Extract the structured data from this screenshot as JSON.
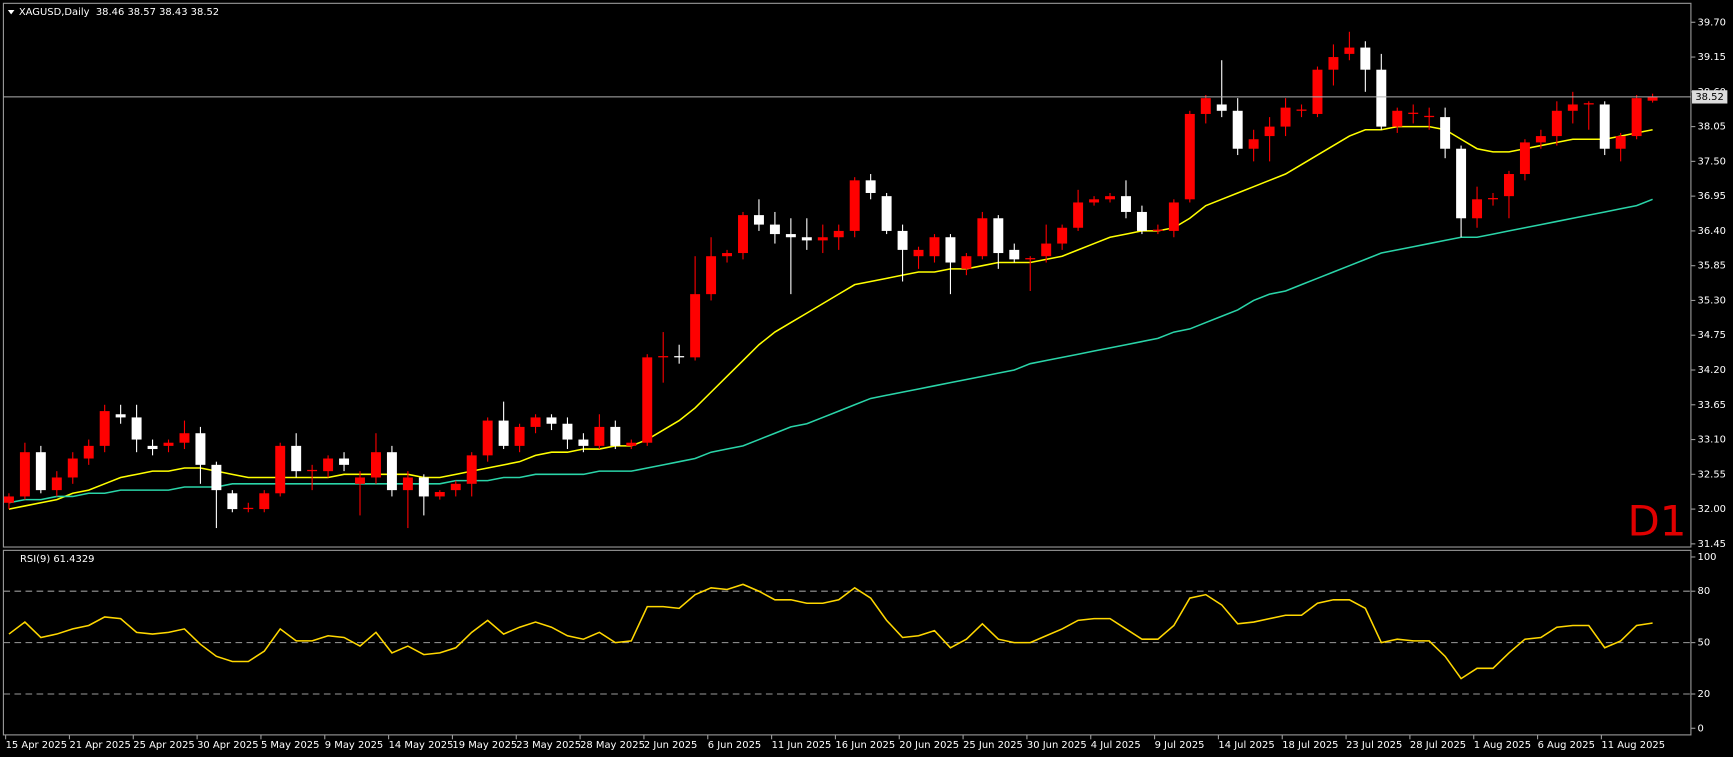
{
  "chart_data": [
    {
      "type": "candlestick",
      "title": "XAGUSD,Daily  38.46 38.57 38.43 38.52",
      "timeframe_label": "D1",
      "categories": [
        "15 Apr 2025",
        null,
        null,
        null,
        "21 Apr 2025",
        null,
        null,
        null,
        "25 Apr 2025",
        null,
        null,
        null,
        "30 Apr 2025",
        null,
        null,
        null,
        "5 May 2025",
        null,
        null,
        null,
        "9 May 2025",
        null,
        null,
        null,
        "14 May 2025",
        null,
        null,
        null,
        "19 May 2025",
        null,
        null,
        null,
        "23 May 2025",
        null,
        null,
        null,
        "28 May 2025",
        null,
        null,
        null,
        "2 Jun 2025",
        null,
        null,
        null,
        "6 Jun 2025",
        null,
        null,
        null,
        "11 Jun 2025",
        null,
        null,
        null,
        "16 Jun 2025",
        null,
        null,
        null,
        "20 Jun 2025",
        null,
        null,
        null,
        "25 Jun 2025",
        null,
        null,
        null,
        "30 Jun 2025",
        null,
        null,
        null,
        "4 Jul 2025",
        null,
        null,
        null,
        "9 Jul 2025",
        null,
        null,
        null,
        "14 Jul 2025",
        null,
        null,
        null,
        "18 Jul 2025",
        null,
        null,
        null,
        "23 Jul 2025",
        null,
        null,
        null,
        "28 Jul 2025",
        null,
        null,
        null,
        "1 Aug 2025",
        null,
        null,
        null,
        "6 Aug 2025",
        null,
        null,
        null,
        "11 Aug 2025",
        null,
        null,
        null
      ],
      "open": [
        32.1,
        32.2,
        32.9,
        32.3,
        32.5,
        32.8,
        33.0,
        33.5,
        33.45,
        33.0,
        33.0,
        33.05,
        33.2,
        32.7,
        32.25,
        32.0,
        32.0,
        32.25,
        33.0,
        32.6,
        32.6,
        32.8,
        32.4,
        32.5,
        32.9,
        32.3,
        32.5,
        32.2,
        32.3,
        32.4,
        32.85,
        33.4,
        33.0,
        33.3,
        33.45,
        33.35,
        33.1,
        33.0,
        33.3,
        33.0,
        33.05,
        34.4,
        34.42,
        34.4,
        35.4,
        36.0,
        36.05,
        36.65,
        36.5,
        36.35,
        36.3,
        36.25,
        36.3,
        36.4,
        37.2,
        36.95,
        36.4,
        36.0,
        36.0,
        36.3,
        35.8,
        36.0,
        36.6,
        36.1,
        35.95,
        36.0,
        36.2,
        36.45,
        36.85,
        36.9,
        36.95,
        36.7,
        36.4,
        36.4,
        36.9,
        38.25,
        38.4,
        38.3,
        37.7,
        37.9,
        38.05,
        38.3,
        38.25,
        38.95,
        39.2,
        39.3,
        38.95,
        38.05,
        38.25,
        38.2,
        38.2,
        37.7,
        36.6,
        36.9,
        36.95,
        37.3,
        37.8,
        37.9,
        38.3,
        38.4,
        38.4,
        37.7,
        37.9,
        38.46
      ],
      "high": [
        32.25,
        33.05,
        33.0,
        32.6,
        32.9,
        33.1,
        33.65,
        33.65,
        33.65,
        33.1,
        33.1,
        33.4,
        33.3,
        32.75,
        32.3,
        32.1,
        32.3,
        33.05,
        33.2,
        32.7,
        32.85,
        32.9,
        32.6,
        33.2,
        33.0,
        32.6,
        32.55,
        32.3,
        32.45,
        32.9,
        33.45,
        33.7,
        33.35,
        33.5,
        33.5,
        33.45,
        33.2,
        33.5,
        33.4,
        33.1,
        34.45,
        34.8,
        34.6,
        36.0,
        36.3,
        36.1,
        36.7,
        36.9,
        36.7,
        36.6,
        36.6,
        36.5,
        36.5,
        37.25,
        37.3,
        37.0,
        36.5,
        36.15,
        36.35,
        36.35,
        36.05,
        36.7,
        36.65,
        36.2,
        36.0,
        36.5,
        36.5,
        37.05,
        36.95,
        37.0,
        37.2,
        36.8,
        36.5,
        36.9,
        38.3,
        38.55,
        39.1,
        38.5,
        38.0,
        38.2,
        38.5,
        38.4,
        39.0,
        39.35,
        39.55,
        39.4,
        39.2,
        38.35,
        38.4,
        38.35,
        38.35,
        37.75,
        37.1,
        37.0,
        37.35,
        37.85,
        38.0,
        38.45,
        38.6,
        38.45,
        38.45,
        37.95,
        38.55,
        38.57
      ],
      "low": [
        32.0,
        32.15,
        32.25,
        32.2,
        32.4,
        32.7,
        32.9,
        33.35,
        32.9,
        32.85,
        32.9,
        32.95,
        32.4,
        31.7,
        31.95,
        31.95,
        31.95,
        32.2,
        32.5,
        32.3,
        32.5,
        32.6,
        31.9,
        32.4,
        32.2,
        31.7,
        31.9,
        32.15,
        32.2,
        32.2,
        32.75,
        32.95,
        32.9,
        33.2,
        33.25,
        32.95,
        32.9,
        32.95,
        32.95,
        32.95,
        33.0,
        34.0,
        34.3,
        34.35,
        35.3,
        35.9,
        35.95,
        36.4,
        36.2,
        35.4,
        36.1,
        36.05,
        36.1,
        36.3,
        36.9,
        36.35,
        35.6,
        35.8,
        35.9,
        35.4,
        35.7,
        35.95,
        35.8,
        35.9,
        35.45,
        35.9,
        36.1,
        36.4,
        36.8,
        36.85,
        36.6,
        36.35,
        36.35,
        36.3,
        36.85,
        38.1,
        38.2,
        37.6,
        37.5,
        37.5,
        37.9,
        38.2,
        38.2,
        38.7,
        39.1,
        38.6,
        38.0,
        37.95,
        38.1,
        38.0,
        37.55,
        36.3,
        36.45,
        36.8,
        36.6,
        37.2,
        37.7,
        37.75,
        38.1,
        38.0,
        37.6,
        37.5,
        37.85,
        38.43
      ],
      "close": [
        32.2,
        32.9,
        32.3,
        32.5,
        32.8,
        33.0,
        33.55,
        33.45,
        33.1,
        32.95,
        33.05,
        33.2,
        32.7,
        32.3,
        32.0,
        32.02,
        32.25,
        33.0,
        32.6,
        32.62,
        32.8,
        32.7,
        32.5,
        32.9,
        32.3,
        32.5,
        32.2,
        32.27,
        32.4,
        32.85,
        33.4,
        33.0,
        33.3,
        33.45,
        33.35,
        33.1,
        33.0,
        33.3,
        33.0,
        33.05,
        34.4,
        34.42,
        34.4,
        35.4,
        36.0,
        36.05,
        36.65,
        36.5,
        36.35,
        36.3,
        36.25,
        36.3,
        36.4,
        37.2,
        37.0,
        36.4,
        36.1,
        36.1,
        36.3,
        35.9,
        36.0,
        36.6,
        36.05,
        35.95,
        35.97,
        36.2,
        36.45,
        36.85,
        36.9,
        36.95,
        36.7,
        36.4,
        36.42,
        36.85,
        38.25,
        38.5,
        38.3,
        37.7,
        37.85,
        38.05,
        38.35,
        38.32,
        38.95,
        39.15,
        39.3,
        38.95,
        38.05,
        38.3,
        38.27,
        38.22,
        37.7,
        36.6,
        36.9,
        36.92,
        37.3,
        37.8,
        37.9,
        38.3,
        38.4,
        38.42,
        37.7,
        37.9,
        38.5,
        38.52
      ],
      "up_color": "#ff0000",
      "down_color": "#ffffff",
      "doji_color": "#00c000",
      "overlays": [
        {
          "color": "#ffff00",
          "values": [
            32.0,
            32.05,
            32.1,
            32.15,
            32.25,
            32.3,
            32.4,
            32.5,
            32.55,
            32.6,
            32.6,
            32.65,
            32.65,
            32.6,
            32.55,
            32.5,
            32.5,
            32.5,
            32.5,
            32.5,
            32.5,
            32.55,
            32.55,
            32.55,
            32.55,
            32.55,
            32.5,
            32.5,
            32.55,
            32.6,
            32.65,
            32.7,
            32.75,
            32.85,
            32.9,
            32.9,
            32.95,
            32.95,
            33.0,
            33.0,
            33.1,
            33.25,
            33.4,
            33.6,
            33.85,
            34.1,
            34.35,
            34.6,
            34.8,
            34.95,
            35.1,
            35.25,
            35.4,
            35.55,
            35.6,
            35.65,
            35.7,
            35.75,
            35.75,
            35.8,
            35.8,
            35.85,
            35.9,
            35.9,
            35.9,
            35.95,
            36.0,
            36.1,
            36.2,
            36.3,
            36.35,
            36.4,
            36.4,
            36.45,
            36.6,
            36.8,
            36.9,
            37.0,
            37.1,
            37.2,
            37.3,
            37.45,
            37.6,
            37.75,
            37.9,
            38.0,
            38.0,
            38.05,
            38.05,
            38.05,
            38.0,
            37.85,
            37.7,
            37.65,
            37.65,
            37.7,
            37.75,
            37.8,
            37.85,
            37.85,
            37.85,
            37.9,
            37.95,
            38.0
          ]
        },
        {
          "color": "#2ad4a8",
          "values": [
            32.1,
            32.15,
            32.15,
            32.2,
            32.2,
            32.25,
            32.25,
            32.3,
            32.3,
            32.3,
            32.3,
            32.35,
            32.35,
            32.35,
            32.4,
            32.4,
            32.4,
            32.4,
            32.4,
            32.4,
            32.4,
            32.4,
            32.4,
            32.4,
            32.4,
            32.4,
            32.4,
            32.4,
            32.45,
            32.45,
            32.45,
            32.5,
            32.5,
            32.55,
            32.55,
            32.55,
            32.55,
            32.6,
            32.6,
            32.6,
            32.65,
            32.7,
            32.75,
            32.8,
            32.9,
            32.95,
            33.0,
            33.1,
            33.2,
            33.3,
            33.35,
            33.45,
            33.55,
            33.65,
            33.75,
            33.8,
            33.85,
            33.9,
            33.95,
            34.0,
            34.05,
            34.1,
            34.15,
            34.2,
            34.3,
            34.35,
            34.4,
            34.45,
            34.5,
            34.55,
            34.6,
            34.65,
            34.7,
            34.8,
            34.85,
            34.95,
            35.05,
            35.15,
            35.3,
            35.4,
            35.45,
            35.55,
            35.65,
            35.75,
            35.85,
            35.95,
            36.05,
            36.1,
            36.15,
            36.2,
            36.25,
            36.3,
            36.3,
            36.35,
            36.4,
            36.45,
            36.5,
            36.55,
            36.6,
            36.65,
            36.7,
            36.75,
            36.8,
            36.9
          ]
        }
      ],
      "last_price": 38.52,
      "last_price_label": "38.52",
      "ylim": [
        31.4,
        40.0
      ],
      "yticks": [
        {
          "value": 39.7,
          "label": "39.70"
        },
        {
          "value": 39.15,
          "label": "39.15"
        },
        {
          "value": 38.6,
          "label": "38.60"
        },
        {
          "value": 38.05,
          "label": "38.05"
        },
        {
          "value": 37.5,
          "label": "37.50"
        },
        {
          "value": 36.95,
          "label": "36.95"
        },
        {
          "value": 36.4,
          "label": "36.40"
        },
        {
          "value": 35.85,
          "label": "35.85"
        },
        {
          "value": 35.3,
          "label": "35.30"
        },
        {
          "value": 34.75,
          "label": "34.75"
        },
        {
          "value": 34.2,
          "label": "34.20"
        },
        {
          "value": 33.65,
          "label": "33.65"
        },
        {
          "value": 33.1,
          "label": "33.10"
        },
        {
          "value": 32.55,
          "label": "32.55"
        },
        {
          "value": 32.0,
          "label": "32.00"
        },
        {
          "value": 31.45,
          "label": "31.45"
        }
      ],
      "grid": false
    },
    {
      "type": "line",
      "title": "RSI(9) 61.4329",
      "color": "#ffd700",
      "values": [
        55,
        62,
        53,
        55,
        58,
        60,
        65,
        64,
        56,
        55,
        56,
        58,
        49,
        42,
        39,
        39,
        45,
        58,
        51,
        51,
        54,
        53,
        48,
        56,
        44,
        48,
        43,
        44,
        47,
        56,
        63,
        55,
        59,
        62,
        59,
        54,
        52,
        56,
        50,
        51,
        71,
        71,
        70,
        78,
        82,
        81,
        84,
        80,
        75,
        75,
        73,
        73,
        75,
        82,
        76,
        63,
        53,
        54,
        57,
        47,
        52,
        61,
        52,
        50,
        50,
        54,
        58,
        63,
        64,
        64,
        58,
        52,
        52,
        60,
        76,
        78,
        72,
        61,
        62,
        64,
        66,
        66,
        73,
        75,
        75,
        70,
        50,
        52,
        51,
        51,
        42,
        29,
        35,
        35,
        44,
        52,
        53,
        59,
        60,
        60,
        47,
        51,
        60,
        61.4329
      ],
      "ylim": [
        0,
        100
      ],
      "yticks": [
        100,
        80,
        50,
        20,
        0
      ],
      "levels": [
        80,
        50,
        20
      ]
    }
  ]
}
